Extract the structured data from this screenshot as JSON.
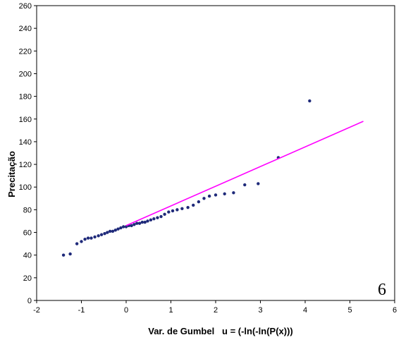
{
  "chart_data": {
    "type": "scatter",
    "xlabel": "Var. de Gumbel   u = (-ln(-ln(P(x)))",
    "ylabel": "Precitação",
    "xlim": [
      -2,
      6
    ],
    "ylim": [
      0,
      260
    ],
    "xticks": [
      -2,
      -1,
      0,
      1,
      2,
      3,
      4,
      5,
      6
    ],
    "yticks": [
      0,
      20,
      40,
      60,
      80,
      100,
      120,
      140,
      160,
      180,
      200,
      220,
      240,
      260
    ],
    "grid": false,
    "series": [
      {
        "kind": "scatter",
        "color": "#1f2a7a",
        "points": [
          [
            -1.4,
            40
          ],
          [
            -1.25,
            41
          ],
          [
            -1.1,
            50
          ],
          [
            -1.0,
            52
          ],
          [
            -0.92,
            54
          ],
          [
            -0.85,
            55
          ],
          [
            -0.78,
            55
          ],
          [
            -0.7,
            56
          ],
          [
            -0.62,
            57
          ],
          [
            -0.55,
            58
          ],
          [
            -0.48,
            59
          ],
          [
            -0.42,
            60
          ],
          [
            -0.36,
            61
          ],
          [
            -0.3,
            61
          ],
          [
            -0.24,
            62
          ],
          [
            -0.18,
            63
          ],
          [
            -0.12,
            64
          ],
          [
            -0.06,
            65
          ],
          [
            0.0,
            65
          ],
          [
            0.06,
            66
          ],
          [
            0.12,
            66
          ],
          [
            0.18,
            67
          ],
          [
            0.24,
            68
          ],
          [
            0.3,
            68
          ],
          [
            0.36,
            69
          ],
          [
            0.42,
            69
          ],
          [
            0.48,
            70
          ],
          [
            0.55,
            71
          ],
          [
            0.62,
            72
          ],
          [
            0.7,
            73
          ],
          [
            0.78,
            74
          ],
          [
            0.86,
            76
          ],
          [
            0.95,
            78
          ],
          [
            1.04,
            79
          ],
          [
            1.14,
            80
          ],
          [
            1.25,
            81
          ],
          [
            1.38,
            82
          ],
          [
            1.5,
            84
          ],
          [
            1.62,
            87
          ],
          [
            1.74,
            90
          ],
          [
            1.86,
            92
          ],
          [
            2.0,
            93
          ],
          [
            2.2,
            94
          ],
          [
            2.4,
            95
          ],
          [
            2.65,
            102
          ],
          [
            2.95,
            103
          ],
          [
            3.4,
            126
          ],
          [
            4.1,
            176
          ]
        ]
      },
      {
        "kind": "line",
        "color": "#ff00ff",
        "points": [
          [
            0.0,
            66
          ],
          [
            5.3,
            158
          ]
        ]
      }
    ],
    "annotation": "6"
  }
}
